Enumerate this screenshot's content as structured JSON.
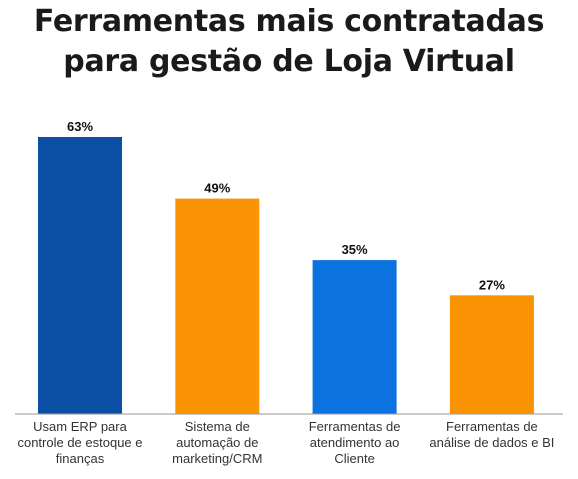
{
  "title_lines": [
    "Ferramentas mais contratadas",
    "para gestão de Loja Virtual"
  ],
  "chart_data": {
    "type": "bar",
    "title": "Ferramentas mais contratadas para gestão de Loja Virtual",
    "categories": [
      [
        "Usam ERP para",
        "controle de estoque e",
        "finanças"
      ],
      [
        "Sistema de",
        "automação de",
        "marketing/CRM"
      ],
      [
        "Ferramentas de",
        "atendimento ao",
        "Cliente"
      ],
      [
        "Ferramentas de",
        "análise de dados e BI"
      ]
    ],
    "values": [
      63,
      49,
      35,
      27
    ],
    "value_labels": [
      "63%",
      "49%",
      "35%",
      "27%"
    ],
    "colors": [
      "#0a4fa3",
      "#fb9404",
      "#0b72e0",
      "#fb9404"
    ],
    "ylim": [
      0,
      100
    ],
    "grid": false,
    "legend": "none",
    "xlabel": "",
    "ylabel": ""
  }
}
